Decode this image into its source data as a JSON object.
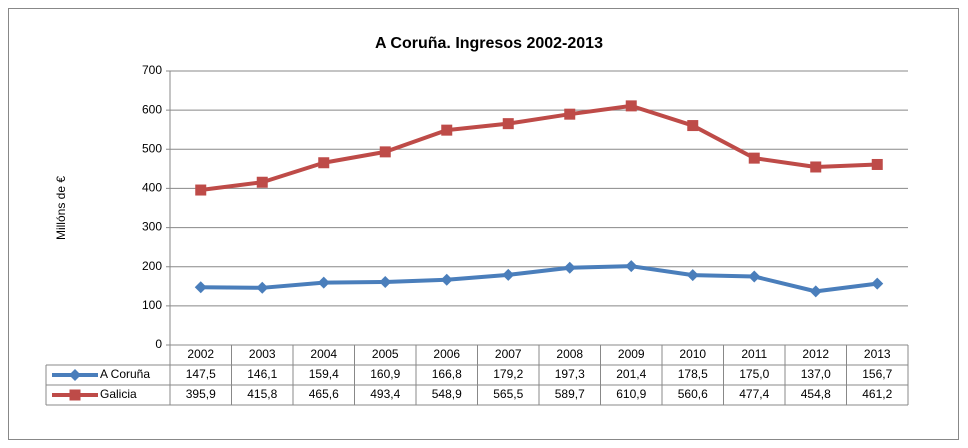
{
  "chart_data": {
    "type": "line",
    "title": "A Coruña. Ingresos 2002-2013",
    "y_label": "Millóns de €",
    "categories": [
      "2002",
      "2003",
      "2004",
      "2005",
      "2006",
      "2007",
      "2008",
      "2009",
      "2010",
      "2011",
      "2012",
      "2013"
    ],
    "series": [
      {
        "name": "A Coruña",
        "color": "#4a7ebb",
        "marker": "diamond",
        "values": [
          147.5,
          146.1,
          159.4,
          160.9,
          166.8,
          179.2,
          197.3,
          201.4,
          178.5,
          175.0,
          137.0,
          156.7
        ],
        "value_labels": [
          "147,5",
          "146,1",
          "159,4",
          "160,9",
          "166,8",
          "179,2",
          "197,3",
          "201,4",
          "178,5",
          "175,0",
          "137,0",
          "156,7"
        ]
      },
      {
        "name": "Galicia",
        "color": "#be4b48",
        "marker": "square",
        "values": [
          395.9,
          415.8,
          465.6,
          493.4,
          548.9,
          565.5,
          589.7,
          610.9,
          560.6,
          477.4,
          454.8,
          461.2
        ],
        "value_labels": [
          "395,9",
          "415,8",
          "465,6",
          "493,4",
          "548,9",
          "565,5",
          "589,7",
          "610,9",
          "560,6",
          "477,4",
          "454,8",
          "461,2"
        ]
      }
    ],
    "ylim": [
      0,
      700
    ],
    "yticks": [
      0,
      100,
      200,
      300,
      400,
      500,
      600,
      700
    ],
    "grid": true
  }
}
